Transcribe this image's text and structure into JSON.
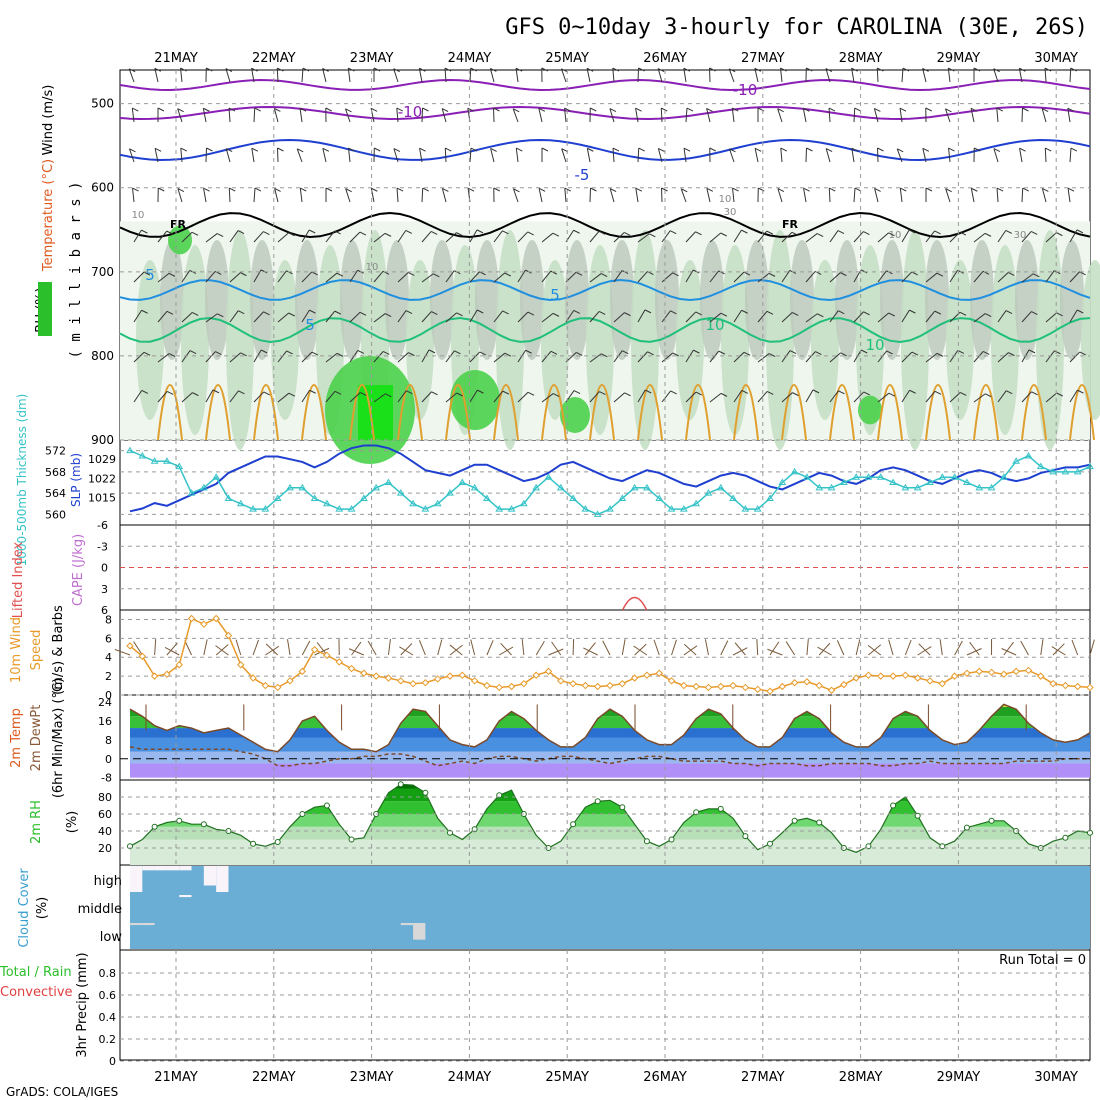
{
  "title": "GFS 0~10day 3-hourly for CAROLINA (30E, 26S)",
  "footer": "GrADS: COLA/IGES",
  "dates": [
    "21MAY",
    "22MAY",
    "23MAY",
    "24MAY",
    "25MAY",
    "26MAY",
    "27MAY",
    "28MAY",
    "29MAY",
    "30MAY"
  ],
  "colors": {
    "frame": "#000000",
    "grid": "#9a9a9a",
    "purple": "#8a1fb5",
    "blue_dark": "#1f3fd0",
    "blue_mid": "#1f8fe0",
    "teal": "#1fc07a",
    "orange": "#e0a030",
    "slp": "#1f3fd0",
    "thickness": "#35c3c8",
    "wind_speed": "#e89a2a",
    "barb": "#7a5a3a",
    "rh_green": "#2bbf2b",
    "temp_fill_blue": "#4a90e0",
    "temp_fill_purple": "#a070f0",
    "cloud": "#6aaed6",
    "cloud_clear": "#f8f4fa"
  },
  "chart_data": [
    {
      "type": "heatmap",
      "panel": "upper-air cross section",
      "ylabel_parts": [
        "RH (%)",
        "Temperature (°C)",
        "Wind (m/s)"
      ],
      "ylabel_units": "( m i l l i b a r s )",
      "yticks": [
        500,
        600,
        700,
        800,
        900
      ],
      "ylim": [
        900,
        460
      ],
      "contour_labels": [
        "-10",
        "-10",
        "-5",
        "5",
        "5",
        "5",
        "10",
        "10",
        "FR",
        "FR"
      ],
      "rh_labels": [
        "10",
        "10",
        "10",
        "10",
        "30",
        "30"
      ]
    },
    {
      "type": "line",
      "panel": "slp and thickness",
      "ylabel_left": "1000-500mb Thickness (dm)",
      "ylabel_right": "SLP (mb)",
      "yticks_thickness": [
        560,
        564,
        568,
        572
      ],
      "yticks_slp": [
        1015,
        1022,
        1029
      ],
      "series": [
        {
          "name": "SLP (mb)",
          "values": [
            1010,
            1011,
            1013,
            1012,
            1014,
            1016,
            1018,
            1020,
            1024,
            1026,
            1028,
            1030,
            1030,
            1029,
            1028,
            1026,
            1028,
            1031,
            1033,
            1034,
            1034,
            1033,
            1031,
            1028,
            1025,
            1024,
            1023,
            1025,
            1027,
            1027,
            1025,
            1023,
            1021,
            1022,
            1024,
            1027,
            1028,
            1026,
            1024,
            1022,
            1021,
            1023,
            1025,
            1024,
            1022,
            1020,
            1019,
            1021,
            1023,
            1024,
            1023,
            1021,
            1019,
            1018,
            1020,
            1022,
            1024,
            1023,
            1021,
            1020,
            1022,
            1025,
            1026,
            1025,
            1023,
            1021,
            1020,
            1022,
            1024,
            1025,
            1024,
            1022,
            1021,
            1022,
            1024,
            1025,
            1026,
            1026,
            1027
          ]
        },
        {
          "name": "1000-500mb Thickness (dm)",
          "values": [
            572,
            571,
            570,
            570,
            569,
            564,
            565,
            567,
            563,
            562,
            561,
            561,
            563,
            565,
            565,
            563,
            562,
            561,
            561,
            563,
            565,
            566,
            564,
            562,
            561,
            562,
            564,
            566,
            565,
            563,
            561,
            561,
            562,
            565,
            567,
            565,
            563,
            561,
            560,
            561,
            563,
            565,
            565,
            563,
            561,
            561,
            562,
            564,
            565,
            563,
            561,
            561,
            563,
            566,
            568,
            567,
            565,
            565,
            566,
            567,
            567,
            567,
            566,
            565,
            565,
            566,
            567,
            567,
            566,
            565,
            565,
            567,
            570,
            571,
            569,
            568,
            568,
            568,
            569
          ]
        }
      ]
    },
    {
      "type": "line",
      "panel": "instability",
      "ylabel_left": "Lifted Index",
      "ylabel_right": "CAPE (J/kg)",
      "yticks": [
        -6,
        -3,
        0,
        3,
        6
      ],
      "ylim": [
        6,
        -6
      ],
      "cape_bump_x_index": 41
    },
    {
      "type": "line",
      "panel": "10m wind",
      "ylabel": "10m Wind Speed (m/s) & Barbs",
      "ylabel_lines": [
        "10m Wind",
        "Speed",
        "(m/s) & Barbs"
      ],
      "yticks": [
        0,
        2,
        4,
        6,
        8
      ],
      "ylim": [
        0,
        9
      ],
      "series": [
        {
          "name": "Speed",
          "values": [
            5.2,
            4.1,
            2.0,
            2.2,
            3.2,
            8.1,
            7.5,
            8.1,
            6.3,
            3.2,
            1.8,
            1.0,
            0.8,
            1.5,
            2.5,
            4.8,
            4.2,
            3.5,
            2.8,
            2.3,
            2.0,
            1.8,
            1.5,
            1.2,
            1.3,
            1.7,
            2.0,
            2.1,
            1.5,
            1.0,
            0.8,
            0.9,
            1.2,
            2.1,
            2.5,
            1.5,
            1.2,
            1.0,
            0.9,
            1.0,
            1.2,
            1.8,
            2.1,
            2.3,
            1.5,
            1.0,
            0.9,
            0.8,
            0.9,
            1.0,
            0.8,
            0.6,
            0.4,
            0.9,
            1.3,
            1.4,
            1.0,
            0.5,
            1.1,
            1.8,
            2.1,
            2.0,
            2.0,
            2.1,
            1.8,
            1.5,
            1.2,
            2.0,
            2.3,
            2.5,
            2.4,
            2.2,
            2.5,
            2.6,
            2.0,
            1.2,
            1.0,
            0.9,
            0.8
          ]
        }
      ]
    },
    {
      "type": "area",
      "panel": "2m temperature",
      "ylabel_lines": [
        "2m Temp",
        "2m DewPt",
        "(6hr Min/Max) (°C)"
      ],
      "yticks": [
        -8,
        0,
        8,
        16,
        24
      ],
      "ylim": [
        -8,
        26
      ],
      "series": [
        {
          "name": "2m Temp",
          "values": [
            21,
            18,
            14,
            12,
            14,
            13,
            11,
            12,
            13,
            10,
            7,
            4,
            3,
            8,
            16,
            18,
            12,
            7,
            4,
            4,
            3,
            6,
            15,
            21,
            20,
            14,
            8,
            6,
            5,
            8,
            16,
            20,
            17,
            12,
            8,
            5,
            5,
            9,
            17,
            21,
            18,
            12,
            8,
            6,
            6,
            10,
            17,
            21,
            19,
            13,
            8,
            5,
            5,
            9,
            17,
            20,
            17,
            11,
            7,
            5,
            5,
            9,
            17,
            20,
            18,
            12,
            8,
            6,
            7,
            12,
            18,
            23,
            21,
            15,
            11,
            8,
            7,
            8,
            11
          ]
        },
        {
          "name": "2m DewPt",
          "values": [
            5,
            4,
            4,
            4,
            4,
            4,
            4,
            4,
            4,
            3,
            2,
            0,
            -3,
            -3,
            -2,
            -2,
            -1,
            0,
            0,
            1,
            1,
            2,
            2,
            1,
            -1,
            -3,
            -2,
            -1,
            -2,
            0,
            1,
            1,
            0,
            -1,
            0,
            1,
            1,
            0,
            -1,
            -2,
            -1,
            0,
            1,
            1,
            0,
            -1,
            -1,
            -1,
            -1,
            -2,
            -2,
            -3,
            -2,
            -2,
            -2,
            -3,
            -3,
            -2,
            -2,
            -2,
            -2,
            -3,
            -3,
            -2,
            -2,
            -1,
            -2,
            -2,
            -2,
            -2,
            -2,
            -2,
            -1,
            -1,
            -1,
            -1,
            0,
            0,
            0
          ]
        }
      ]
    },
    {
      "type": "area",
      "panel": "2m rh",
      "ylabel": "2m RH (%)",
      "yticks": [
        20,
        40,
        60,
        80
      ],
      "ylim": [
        0,
        100
      ],
      "series": [
        {
          "name": "2m RH",
          "values": [
            22,
            30,
            45,
            50,
            52,
            48,
            48,
            42,
            40,
            35,
            25,
            22,
            27,
            45,
            60,
            68,
            70,
            48,
            30,
            32,
            60,
            85,
            95,
            94,
            85,
            55,
            38,
            30,
            42,
            66,
            82,
            88,
            60,
            35,
            20,
            28,
            48,
            68,
            75,
            76,
            68,
            48,
            28,
            22,
            30,
            50,
            62,
            66,
            66,
            55,
            34,
            18,
            25,
            38,
            52,
            55,
            50,
            38,
            20,
            15,
            22,
            42,
            70,
            80,
            58,
            32,
            22,
            28,
            44,
            48,
            52,
            52,
            40,
            25,
            20,
            28,
            32,
            40,
            38
          ]
        }
      ]
    },
    {
      "type": "area",
      "panel": "cloud cover",
      "ylabel": "Cloud Cover (%)",
      "levels": [
        "high",
        "middle",
        "low"
      ],
      "series": [
        {
          "name": "high",
          "values": [
            60,
            10,
            10,
            10,
            10,
            0,
            45,
            60,
            0,
            0,
            0,
            0,
            0,
            0,
            0,
            0,
            0,
            0,
            0,
            0,
            0,
            0,
            0,
            0,
            0,
            0,
            0,
            0,
            0,
            0,
            0,
            0,
            0,
            0,
            0,
            0,
            0,
            0,
            0,
            0,
            0,
            0,
            0,
            0,
            0,
            0,
            0,
            0,
            0,
            0,
            0,
            0,
            0,
            0,
            0,
            0,
            0,
            0,
            0,
            0,
            0,
            0,
            0,
            0,
            0,
            0,
            0,
            0,
            0,
            0,
            0,
            0,
            0,
            0,
            0,
            0,
            0,
            0,
            0
          ]
        },
        {
          "name": "middle",
          "values": [
            0,
            0,
            0,
            0,
            5,
            0,
            0,
            0,
            0,
            0,
            0,
            0,
            0,
            0,
            0,
            0,
            0,
            0,
            0,
            0,
            0,
            0,
            0,
            0,
            0,
            0,
            0,
            0,
            0,
            0,
            0,
            0,
            0,
            0,
            0,
            0,
            0,
            0,
            0,
            0,
            0,
            0,
            0,
            0,
            0,
            0,
            0,
            0,
            0,
            0,
            0,
            0,
            0,
            0,
            0,
            0,
            0,
            0,
            0,
            0,
            0,
            0,
            0,
            0,
            0,
            0,
            0,
            0,
            0,
            0,
            0,
            0,
            0,
            0,
            0,
            0,
            0,
            0,
            0
          ]
        },
        {
          "name": "low",
          "values": [
            5,
            5,
            0,
            0,
            0,
            0,
            0,
            0,
            0,
            0,
            0,
            0,
            0,
            0,
            0,
            0,
            0,
            0,
            0,
            0,
            0,
            0,
            5,
            40,
            0,
            0,
            0,
            0,
            0,
            0,
            0,
            0,
            0,
            0,
            0,
            0,
            0,
            0,
            0,
            0,
            0,
            0,
            0,
            0,
            0,
            0,
            0,
            0,
            0,
            0,
            0,
            0,
            0,
            0,
            0,
            0,
            0,
            0,
            0,
            0,
            0,
            0,
            0,
            0,
            0,
            0,
            0,
            0,
            0,
            0,
            0,
            0,
            0,
            0,
            0,
            0,
            0,
            0,
            0
          ]
        }
      ]
    },
    {
      "type": "bar",
      "panel": "precipitation",
      "ylabel": "3hr Precip (mm)",
      "ylabel_left_parts": [
        "Total / Rain",
        "Convective"
      ],
      "yticks": [
        0,
        0.2,
        0.4,
        0.6,
        0.8
      ],
      "ylim": [
        0,
        1.0
      ],
      "run_total_label": "Run Total = 0",
      "values": []
    }
  ]
}
